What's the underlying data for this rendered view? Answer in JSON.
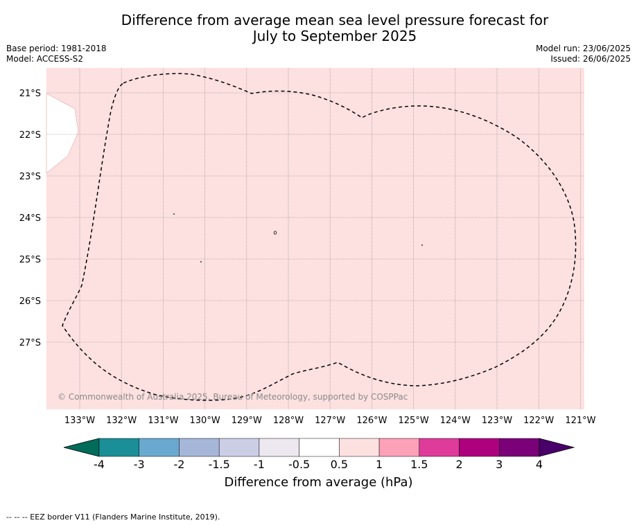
{
  "title_line1": "Difference from average mean sea level pressure forecast for",
  "title_line2": "July to September 2025",
  "base_period": "Base period: 1981-2018",
  "model": "Model: ACCESS-S2",
  "model_run": "Model run: 23/06/2025",
  "issued": "Issued: 26/06/2025",
  "copyright": "© Commonwealth of Australia 2025, Bureau of Meteorology, supported by COSPPac",
  "lat_labels": [
    "21°S",
    "22°S",
    "23°S",
    "24°S",
    "25°S",
    "26°S",
    "27°S"
  ],
  "lon_labels": [
    "133°W",
    "132°W",
    "131°W",
    "130°W",
    "129°W",
    "128°W",
    "127°W",
    "126°W",
    "125°W",
    "124°W",
    "123°W",
    "122°W",
    "121°W"
  ],
  "colorbar": {
    "title": "Difference from average (hPa)",
    "ticks": [
      "-4",
      "-3",
      "-2",
      "-1.5",
      "-1",
      "-0.5",
      "0.5",
      "1",
      "1.5",
      "2",
      "3",
      "4"
    ],
    "colors": [
      "#1b8f98",
      "#6aa9cf",
      "#a5b6d9",
      "#cccee6",
      "#ede8ef",
      "#ffffff",
      "#fde0e0",
      "#fca1b8",
      "#de3b9a",
      "#ae017e",
      "#7a0177"
    ],
    "under_color": "#016c59",
    "over_color": "#49006a"
  },
  "map": {
    "fill_color": "#fde0e0",
    "category": "0.5 to 1"
  },
  "footer": "--  --  -- EEZ border V11 (Flanders Marine Institute, 2019)."
}
